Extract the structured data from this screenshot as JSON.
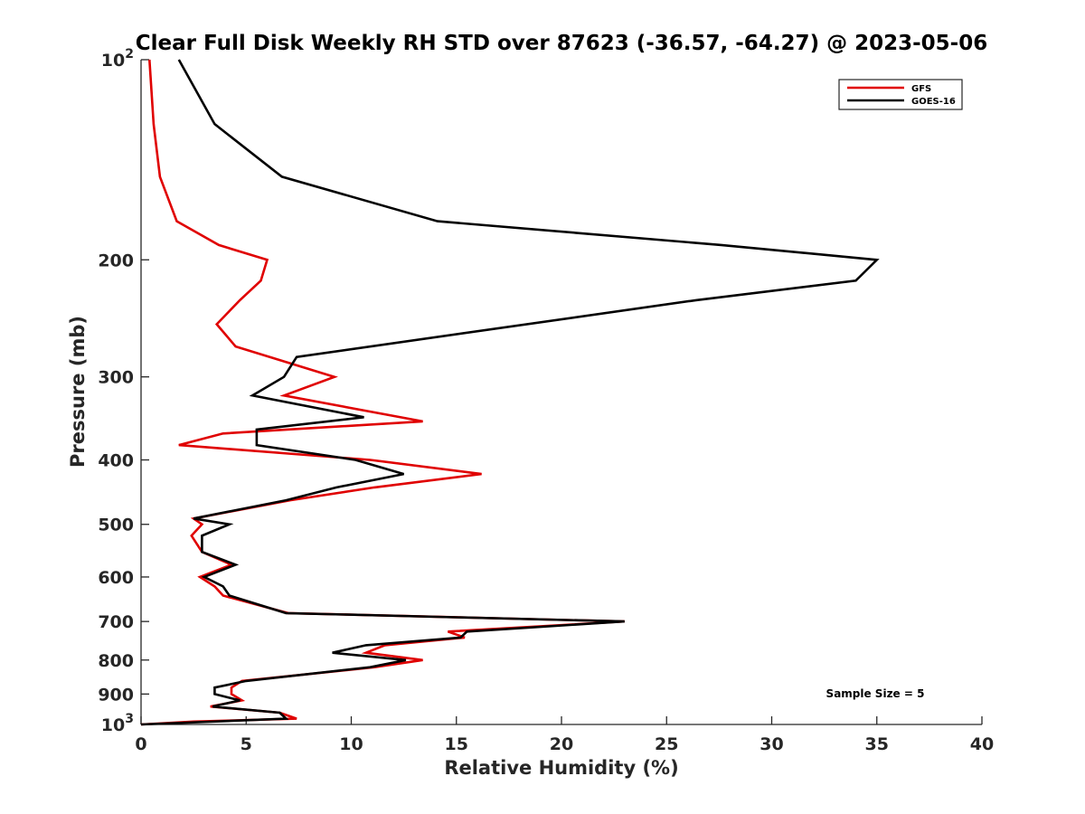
{
  "chart_data": {
    "type": "line",
    "title": "Clear Full Disk Weekly RH STD over 87623 (-36.57, -64.27) @ 2023-05-06",
    "xlabel": "Relative Humidity (%)",
    "ylabel": "Pressure (mb)",
    "xlim": [
      0,
      40
    ],
    "ylim": [
      100,
      1000
    ],
    "y_scale": "log",
    "y_reversed": true,
    "grid": false,
    "x_ticks": [
      0,
      5,
      10,
      15,
      20,
      25,
      30,
      35,
      40
    ],
    "y_ticks": [
      {
        "value": 100,
        "label": "10",
        "exp": "2"
      },
      {
        "value": 200,
        "label": "200"
      },
      {
        "value": 300,
        "label": "300"
      },
      {
        "value": 400,
        "label": "400"
      },
      {
        "value": 500,
        "label": "500"
      },
      {
        "value": 600,
        "label": "600"
      },
      {
        "value": 700,
        "label": "700"
      },
      {
        "value": 800,
        "label": "800"
      },
      {
        "value": 900,
        "label": "900"
      },
      {
        "value": 1000,
        "label": "10",
        "exp": "3"
      }
    ],
    "legend_position": "top-right",
    "annotation": "Sample Size = 5",
    "series": [
      {
        "name": "GFS",
        "color": "#e00000",
        "points": [
          [
            0.4,
            100
          ],
          [
            0.6,
            125
          ],
          [
            0.9,
            150
          ],
          [
            1.7,
            175
          ],
          [
            3.7,
            190
          ],
          [
            6.0,
            200
          ],
          [
            5.7,
            215
          ],
          [
            4.7,
            230
          ],
          [
            3.6,
            250
          ],
          [
            4.5,
            270
          ],
          [
            9.2,
            300
          ],
          [
            6.8,
            320
          ],
          [
            13.4,
            350
          ],
          [
            3.9,
            365
          ],
          [
            1.8,
            380
          ],
          [
            10.9,
            400
          ],
          [
            16.2,
            420
          ],
          [
            11.1,
            440
          ],
          [
            7.1,
            460
          ],
          [
            2.5,
            490
          ],
          [
            2.9,
            500
          ],
          [
            2.4,
            520
          ],
          [
            2.9,
            550
          ],
          [
            4.3,
            575
          ],
          [
            2.8,
            600
          ],
          [
            3.5,
            620
          ],
          [
            3.9,
            640
          ],
          [
            7.0,
            680
          ],
          [
            23.0,
            700
          ],
          [
            14.6,
            725
          ],
          [
            15.4,
            740
          ],
          [
            11.6,
            760
          ],
          [
            10.7,
            780
          ],
          [
            13.4,
            800
          ],
          [
            11.1,
            820
          ],
          [
            4.8,
            860
          ],
          [
            4.3,
            880
          ],
          [
            4.3,
            900
          ],
          [
            4.8,
            920
          ],
          [
            3.3,
            940
          ],
          [
            6.6,
            960
          ],
          [
            7.4,
            980
          ],
          [
            2.5,
            990
          ],
          [
            0.0,
            1000
          ]
        ]
      },
      {
        "name": "GOES-16",
        "color": "#000000",
        "points": [
          [
            1.8,
            100
          ],
          [
            3.5,
            125
          ],
          [
            6.7,
            150
          ],
          [
            14.1,
            175
          ],
          [
            27.6,
            190
          ],
          [
            35.0,
            200
          ],
          [
            34.0,
            215
          ],
          [
            26.4,
            230
          ],
          [
            7.4,
            280
          ],
          [
            6.8,
            300
          ],
          [
            5.3,
            320
          ],
          [
            10.6,
            345
          ],
          [
            5.5,
            360
          ],
          [
            5.5,
            380
          ],
          [
            10.2,
            400
          ],
          [
            12.5,
            420
          ],
          [
            9.3,
            440
          ],
          [
            6.9,
            460
          ],
          [
            2.5,
            490
          ],
          [
            4.2,
            500
          ],
          [
            2.9,
            520
          ],
          [
            2.9,
            550
          ],
          [
            4.5,
            575
          ],
          [
            3.0,
            600
          ],
          [
            3.9,
            620
          ],
          [
            4.2,
            640
          ],
          [
            6.9,
            680
          ],
          [
            23.0,
            700
          ],
          [
            15.5,
            725
          ],
          [
            15.2,
            740
          ],
          [
            10.7,
            760
          ],
          [
            9.1,
            780
          ],
          [
            12.6,
            800
          ],
          [
            10.9,
            820
          ],
          [
            5.0,
            860
          ],
          [
            3.5,
            880
          ],
          [
            3.5,
            900
          ],
          [
            4.7,
            920
          ],
          [
            3.4,
            940
          ],
          [
            6.6,
            960
          ],
          [
            6.9,
            980
          ],
          [
            0.0,
            1000
          ]
        ]
      }
    ]
  }
}
